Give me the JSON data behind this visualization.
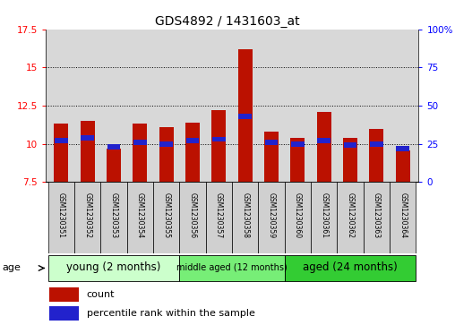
{
  "title": "GDS4892 / 1431603_at",
  "samples": [
    "GSM1230351",
    "GSM1230352",
    "GSM1230353",
    "GSM1230354",
    "GSM1230355",
    "GSM1230356",
    "GSM1230357",
    "GSM1230358",
    "GSM1230359",
    "GSM1230360",
    "GSM1230361",
    "GSM1230362",
    "GSM1230363",
    "GSM1230364"
  ],
  "count_values": [
    11.3,
    11.5,
    9.7,
    11.3,
    11.1,
    11.4,
    12.2,
    16.2,
    10.8,
    10.4,
    12.1,
    10.4,
    11.0,
    9.55
  ],
  "percentile_values": [
    27,
    29,
    23,
    26,
    25,
    27,
    28,
    43,
    26,
    25,
    27,
    24,
    25,
    22
  ],
  "ymin": 7.5,
  "ymax": 17.5,
  "yticks_left": [
    7.5,
    10.0,
    12.5,
    15.0,
    17.5
  ],
  "yticks_right": [
    0,
    25,
    50,
    75,
    100
  ],
  "grid_lines": [
    10.0,
    12.5,
    15.0
  ],
  "bar_color": "#bb1100",
  "percentile_color": "#2222cc",
  "bar_bottom": 7.5,
  "groups": [
    {
      "label": "young (2 months)",
      "samples": 5,
      "color": "#ccffcc",
      "fontsize": 8.5
    },
    {
      "label": "middle aged (12 months)",
      "samples": 4,
      "color": "#77ee77",
      "fontsize": 7.0
    },
    {
      "label": "aged (24 months)",
      "samples": 5,
      "color": "#33cc33",
      "fontsize": 8.5
    }
  ],
  "legend_count_label": "count",
  "legend_pct_label": "percentile rank within the sample",
  "xlabel_age": "age",
  "title_fontsize": 10,
  "tick_fontsize": 7.5,
  "plot_bg_color": "#d8d8d8",
  "cell_bg_color": "#d8d8d8"
}
